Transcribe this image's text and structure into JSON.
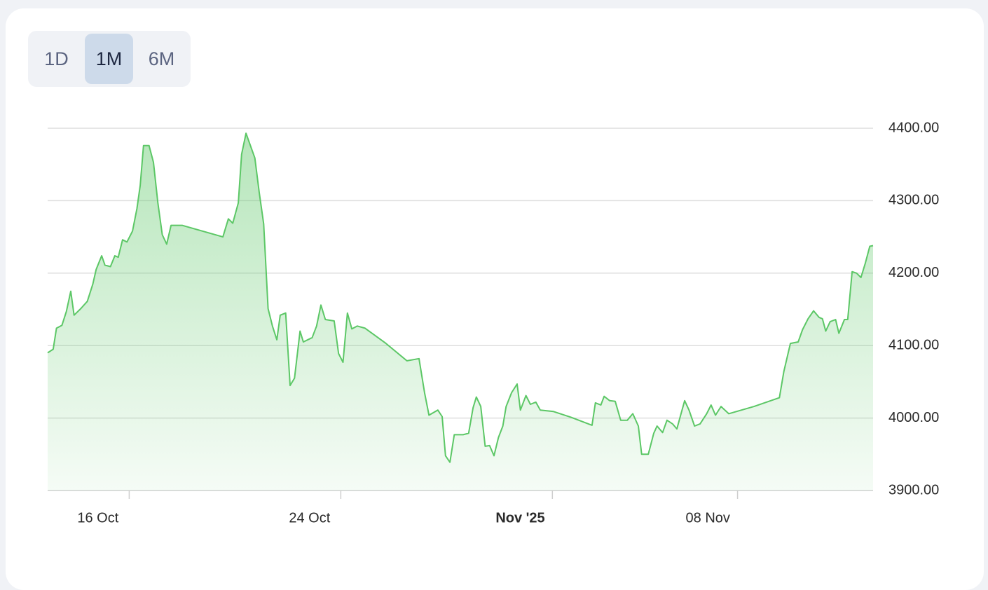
{
  "toolbar": {
    "buttons": [
      "1D",
      "1M",
      "6M"
    ],
    "selected": "1M"
  },
  "chart_data": {
    "type": "area",
    "color": "#5cc766",
    "x": [
      "2025-10-12T22:00",
      "2025-10-13T03:00",
      "2025-10-13T06:00",
      "2025-10-13T11:00",
      "2025-10-13T15:00",
      "2025-10-13T19:00",
      "2025-10-13T22:00",
      "2025-10-14T04:00",
      "2025-10-14T10:00",
      "2025-10-14T15:00",
      "2025-10-14T18:00",
      "2025-10-14T23:00",
      "2025-10-15T02:00",
      "2025-10-15T07:00",
      "2025-10-15T11:00",
      "2025-10-15T14:00",
      "2025-10-15T18:00",
      "2025-10-15T22:00",
      "2025-10-16T03:00",
      "2025-10-16T07:00",
      "2025-10-16T10:00",
      "2025-10-16T13:00",
      "2025-10-16T18:00",
      "2025-10-16T22:00",
      "2025-10-17T02:00",
      "2025-10-17T06:00",
      "2025-10-17T10:00",
      "2025-10-17T14:00",
      "2025-10-18T00:00",
      "2025-10-19T13:00",
      "2025-10-19T18:00",
      "2025-10-19T22:00",
      "2025-10-20T03:00",
      "2025-10-20T06:00",
      "2025-10-20T10:00",
      "2025-10-20T14:00",
      "2025-10-20T18:00",
      "2025-10-20T22:00",
      "2025-10-21T02:00",
      "2025-10-21T06:00",
      "2025-10-21T10:00",
      "2025-10-21T14:00",
      "2025-10-21T17:00",
      "2025-10-21T22:00",
      "2025-10-22T02:00",
      "2025-10-22T06:00",
      "2025-10-22T11:00",
      "2025-10-22T14:00",
      "2025-10-22T22:00",
      "2025-10-23T02:00",
      "2025-10-23T06:00",
      "2025-10-23T10:00",
      "2025-10-23T18:00",
      "2025-10-23T22:00",
      "2025-10-24T02:00",
      "2025-10-24T06:00",
      "2025-10-24T10:00",
      "2025-10-24T15:00",
      "2025-10-24T22:00",
      "2025-10-25T17:00",
      "2025-10-26T12:00",
      "2025-10-26T23:00",
      "2025-10-27T04:00",
      "2025-10-27T08:00",
      "2025-10-27T16:00",
      "2025-10-27T20:00",
      "2025-10-27T23:00",
      "2025-10-28T03:00",
      "2025-10-28T07:00",
      "2025-10-28T15:00",
      "2025-10-28T20:00",
      "2025-10-29T00:00",
      "2025-10-29T03:00",
      "2025-10-29T07:00",
      "2025-10-29T11:00",
      "2025-10-29T15:00",
      "2025-10-29T19:00",
      "2025-10-29T23:00",
      "2025-10-30T03:00",
      "2025-10-30T06:00",
      "2025-10-30T11:00",
      "2025-10-30T16:00",
      "2025-10-30T19:00",
      "2025-10-31T00:00",
      "2025-10-31T04:00",
      "2025-10-31T09:00",
      "2025-10-31T13:00",
      "2025-11-01T01:00",
      "2025-11-01T17:00",
      "2025-11-02T12:00",
      "2025-11-02T15:00",
      "2025-11-02T20:00",
      "2025-11-02T23:00",
      "2025-11-03T04:00",
      "2025-11-03T09:00",
      "2025-11-03T14:00",
      "2025-11-03T20:00",
      "2025-11-04T01:00",
      "2025-11-04T06:00",
      "2025-11-04T09:00",
      "2025-11-04T15:00",
      "2025-11-04T20:00",
      "2025-11-04T23:00",
      "2025-11-05T04:00",
      "2025-11-05T08:00",
      "2025-11-05T13:00",
      "2025-11-05T17:00",
      "2025-11-05T20:00",
      "2025-11-06T00:00",
      "2025-11-06T04:00",
      "2025-11-06T09:00",
      "2025-11-06T14:00",
      "2025-11-06T20:00",
      "2025-11-07T00:00",
      "2025-11-07T04:00",
      "2025-11-07T09:00",
      "2025-11-07T16:00",
      "2025-11-08T15:00",
      "2025-11-09T14:00",
      "2025-11-09T18:00",
      "2025-11-10T00:00",
      "2025-11-10T07:00",
      "2025-11-10T11:00",
      "2025-11-10T16:00",
      "2025-11-10T21:00",
      "2025-11-11T02:00",
      "2025-11-11T05:00",
      "2025-11-11T08:00",
      "2025-11-11T12:00",
      "2025-11-11T17:00",
      "2025-11-11T20:00",
      "2025-11-12T01:00",
      "2025-11-12T04:00",
      "2025-11-12T08:00",
      "2025-11-12T12:00",
      "2025-11-12T16:00",
      "2025-11-12T20:00",
      "2025-11-13T00:00",
      "2025-11-13T03:00"
    ],
    "values": [
      4090,
      4095,
      4124,
      4128,
      4147,
      4175,
      4142,
      4151,
      4161,
      4185,
      4205,
      4224,
      4211,
      4209,
      4224,
      4222,
      4246,
      4243,
      4258,
      4289,
      4321,
      4376,
      4376,
      4353,
      4297,
      4253,
      4240,
      4266,
      4266,
      4250,
      4275,
      4269,
      4297,
      4364,
      4393,
      4376,
      4359,
      4311,
      4268,
      4151,
      4127,
      4108,
      4142,
      4145,
      4045,
      4055,
      4120,
      4105,
      4111,
      4127,
      4156,
      4136,
      4134,
      4089,
      4077,
      4145,
      4123,
      4127,
      4124,
      4103,
      4079,
      4082,
      4035,
      4004,
      4011,
      4002,
      3948,
      3939,
      3977,
      3977,
      3979,
      4014,
      4029,
      4016,
      3961,
      3962,
      3948,
      3973,
      3989,
      4016,
      4035,
      4047,
      4011,
      4031,
      4019,
      4022,
      4011,
      4009,
      4001,
      3990,
      4021,
      4018,
      4030,
      4024,
      4023,
      3997,
      3997,
      4006,
      3989,
      3950,
      3950,
      3979,
      3989,
      3980,
      3997,
      3992,
      3985,
      4002,
      4024,
      4011,
      3989,
      3992,
      4006,
      4018,
      4004,
      4016,
      4006,
      4016,
      4028,
      4064,
      4103,
      4105,
      4122,
      4137,
      4148,
      4139,
      4137,
      4120,
      4133,
      4136,
      4117,
      4136,
      4136,
      4202,
      4200,
      4194,
      4214,
      4237,
      4238
    ],
    "xlim": [
      "2025-10-12T22:00",
      "2025-11-13T03:00"
    ],
    "xticks": [
      {
        "value": "2025-10-16T00:00",
        "label": "16 Oct"
      },
      {
        "value": "2025-10-24T00:00",
        "label": "24 Oct"
      },
      {
        "value": "2025-11-01T00:00",
        "label": "Nov '25"
      },
      {
        "value": "2025-11-08T00:00",
        "label": "08 Nov"
      }
    ],
    "ylim": [
      3900,
      4400
    ],
    "yticks": [
      {
        "value": 3900,
        "label": "3900.00"
      },
      {
        "value": 4000,
        "label": "4000.00"
      },
      {
        "value": 4100,
        "label": "4100.00"
      },
      {
        "value": 4200,
        "label": "4200.00"
      },
      {
        "value": 4300,
        "label": "4300.00"
      },
      {
        "value": 4400,
        "label": "4400.00"
      }
    ],
    "grid": true
  }
}
